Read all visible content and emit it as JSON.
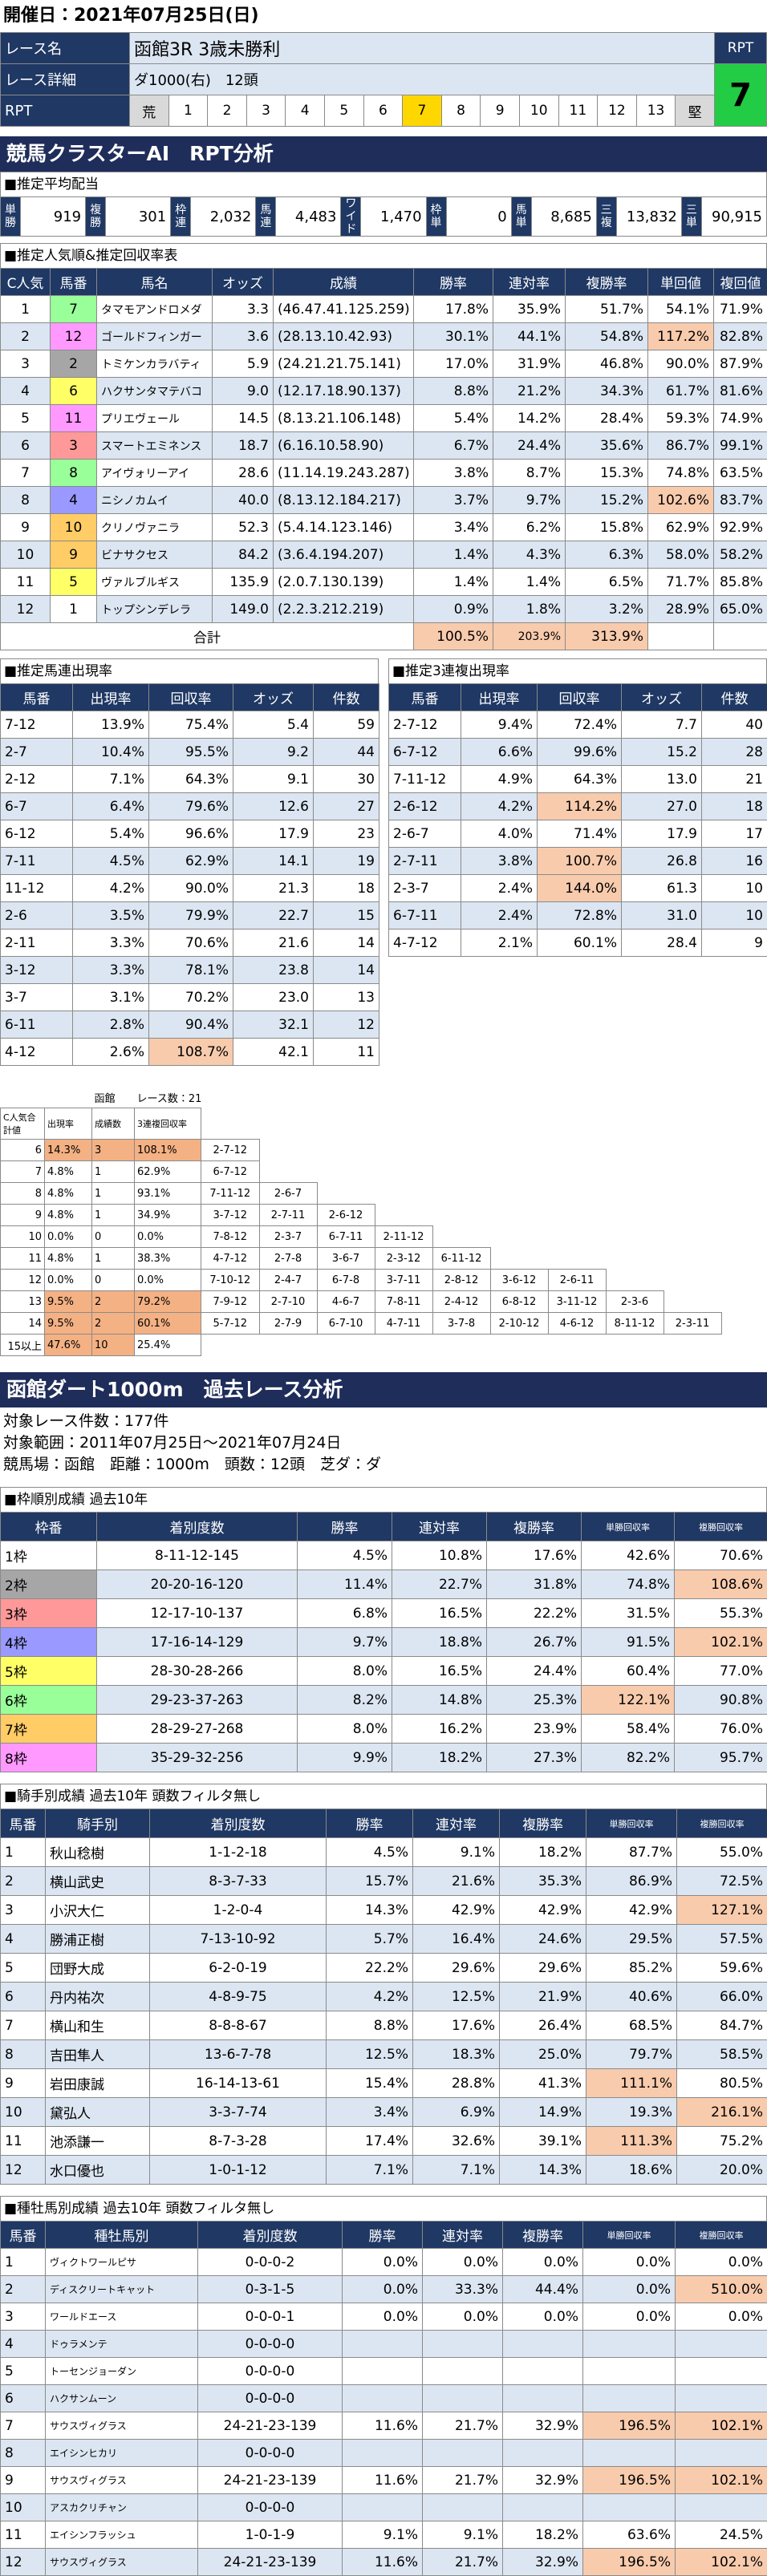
{
  "header": {
    "date": "開催日：2021年07月25日(日)",
    "race_name_label": "レース名",
    "race_name": "函館3R 3歳未勝利",
    "detail_label": "レース詳細",
    "detail": "ダ1000(右)　12頭",
    "rpt_label": "RPT",
    "rpt_scale": [
      "荒",
      "1",
      "2",
      "3",
      "4",
      "5",
      "6",
      "7",
      "8",
      "9",
      "10",
      "11",
      "12",
      "13",
      "堅"
    ],
    "rpt_box_label": "RPT",
    "rpt_value": "7"
  },
  "section1_title": "競馬クラスターAI　RPT分析",
  "payout": {
    "title": "■推定平均配当",
    "items": [
      {
        "label": "単勝",
        "value": "919"
      },
      {
        "label": "複勝",
        "value": "301"
      },
      {
        "label": "枠連",
        "value": "2,032"
      },
      {
        "label": "馬連",
        "value": "4,483"
      },
      {
        "label": "ワイド",
        "value": "1,470"
      },
      {
        "label": "枠単",
        "value": "0"
      },
      {
        "label": "馬単",
        "value": "8,685"
      },
      {
        "label": "三複",
        "value": "13,832"
      },
      {
        "label": "三単",
        "value": "90,915"
      }
    ]
  },
  "popularity": {
    "title": "■推定人気順&推定回収率表",
    "headers": [
      "C人気",
      "馬番",
      "馬名",
      "オッズ",
      "成績",
      "勝率",
      "連対率",
      "複勝率",
      "単回値",
      "複回値"
    ],
    "rows": [
      [
        "1",
        "7",
        "タマモアンドロメダ",
        "3.3",
        "(46.47.41.125.259)",
        "17.8%",
        "35.9%",
        "51.7%",
        "54.1%",
        "71.9%"
      ],
      [
        "2",
        "12",
        "ゴールドフィンガー",
        "3.6",
        "(28.13.10.42.93)",
        "30.1%",
        "44.1%",
        "54.8%",
        "117.2%",
        "82.8%"
      ],
      [
        "3",
        "2",
        "トミケンカラバティ",
        "5.9",
        "(24.21.21.75.141)",
        "17.0%",
        "31.9%",
        "46.8%",
        "90.0%",
        "87.9%"
      ],
      [
        "4",
        "6",
        "ハクサンタマテバコ",
        "9.0",
        "(12.17.18.90.137)",
        "8.8%",
        "21.2%",
        "34.3%",
        "61.7%",
        "81.6%"
      ],
      [
        "5",
        "11",
        "プリエヴェール",
        "14.5",
        "(8.13.21.106.148)",
        "5.4%",
        "14.2%",
        "28.4%",
        "59.3%",
        "74.9%"
      ],
      [
        "6",
        "3",
        "スマートエミネンス",
        "18.7",
        "(6.16.10.58.90)",
        "6.7%",
        "24.4%",
        "35.6%",
        "86.7%",
        "99.1%"
      ],
      [
        "7",
        "8",
        "アイヴォリーアイ",
        "28.6",
        "(11.14.19.243.287)",
        "3.8%",
        "8.7%",
        "15.3%",
        "74.8%",
        "63.5%"
      ],
      [
        "8",
        "4",
        "ニシノカムイ",
        "40.0",
        "(8.13.12.184.217)",
        "3.7%",
        "9.7%",
        "15.2%",
        "102.6%",
        "83.7%"
      ],
      [
        "9",
        "10",
        "クリノヴァニラ",
        "52.3",
        "(5.4.14.123.146)",
        "3.4%",
        "6.2%",
        "15.8%",
        "62.9%",
        "92.9%"
      ],
      [
        "10",
        "9",
        "ビナサクセス",
        "84.2",
        "(3.6.4.194.207)",
        "1.4%",
        "4.3%",
        "6.3%",
        "58.0%",
        "58.2%"
      ],
      [
        "11",
        "5",
        "ヴァルブルギス",
        "135.9",
        "(2.0.7.130.139)",
        "1.4%",
        "1.4%",
        "6.5%",
        "71.7%",
        "85.8%"
      ],
      [
        "12",
        "1",
        "トップシンデレラ",
        "149.0",
        "(2.2.3.212.219)",
        "0.9%",
        "1.8%",
        "3.2%",
        "28.9%",
        "65.0%"
      ]
    ],
    "total": {
      "label": "合計",
      "values": [
        "100.5%",
        "203.9%",
        "313.9%"
      ]
    }
  },
  "umaren": {
    "title": "■推定馬連出現率",
    "headers": [
      "馬番",
      "出現率",
      "回収率",
      "オッズ",
      "件数"
    ],
    "rows": [
      [
        "7-12",
        "13.9%",
        "75.4%",
        "5.4",
        "59"
      ],
      [
        "2-7",
        "10.4%",
        "95.5%",
        "9.2",
        "44"
      ],
      [
        "2-12",
        "7.1%",
        "64.3%",
        "9.1",
        "30"
      ],
      [
        "6-7",
        "6.4%",
        "79.6%",
        "12.6",
        "27"
      ],
      [
        "6-12",
        "5.4%",
        "96.6%",
        "17.9",
        "23"
      ],
      [
        "7-11",
        "4.5%",
        "62.9%",
        "14.1",
        "19"
      ],
      [
        "11-12",
        "4.2%",
        "90.0%",
        "21.3",
        "18"
      ],
      [
        "2-6",
        "3.5%",
        "79.9%",
        "22.7",
        "15"
      ],
      [
        "2-11",
        "3.3%",
        "70.6%",
        "21.6",
        "14"
      ],
      [
        "3-12",
        "3.3%",
        "78.1%",
        "23.8",
        "14"
      ],
      [
        "3-7",
        "3.1%",
        "70.2%",
        "23.0",
        "13"
      ],
      [
        "6-11",
        "2.8%",
        "90.4%",
        "32.1",
        "12"
      ],
      [
        "4-12",
        "2.6%",
        "108.7%",
        "42.1",
        "11"
      ]
    ]
  },
  "sanrenpuku": {
    "title": "■推定3連複出現率",
    "headers": [
      "馬番",
      "出現率",
      "回収率",
      "オッズ",
      "件数"
    ],
    "rows": [
      [
        "2-7-12",
        "9.4%",
        "72.4%",
        "7.7",
        "40"
      ],
      [
        "6-7-12",
        "6.6%",
        "99.6%",
        "15.2",
        "28"
      ],
      [
        "7-11-12",
        "4.9%",
        "64.3%",
        "13.0",
        "21"
      ],
      [
        "2-6-12",
        "4.2%",
        "114.2%",
        "27.0",
        "18"
      ],
      [
        "2-6-7",
        "4.0%",
        "71.4%",
        "17.9",
        "17"
      ],
      [
        "2-7-11",
        "3.8%",
        "100.7%",
        "26.8",
        "16"
      ],
      [
        "2-3-7",
        "2.4%",
        "144.0%",
        "61.3",
        "10"
      ],
      [
        "6-7-11",
        "2.4%",
        "72.8%",
        "31.0",
        "10"
      ],
      [
        "4-7-12",
        "2.1%",
        "60.1%",
        "28.4",
        "9"
      ]
    ]
  },
  "sum_table": {
    "venue": "函館",
    "race_count": "レース数：21",
    "headers": [
      "C人気合計値",
      "出現率",
      "成績数",
      "3連複回収率"
    ],
    "rows": [
      {
        "sum": "6",
        "rate": "14.3%",
        "count": "3",
        "recovery": "108.1%",
        "combos": [
          "2-7-12"
        ]
      },
      {
        "sum": "7",
        "rate": "4.8%",
        "count": "1",
        "recovery": "62.9%",
        "combos": [
          "6-7-12"
        ]
      },
      {
        "sum": "8",
        "rate": "4.8%",
        "count": "1",
        "recovery": "93.1%",
        "combos": [
          "7-11-12",
          "2-6-7"
        ]
      },
      {
        "sum": "9",
        "rate": "4.8%",
        "count": "1",
        "recovery": "34.9%",
        "combos": [
          "3-7-12",
          "2-7-11",
          "2-6-12"
        ]
      },
      {
        "sum": "10",
        "rate": "0.0%",
        "count": "0",
        "recovery": "0.0%",
        "combos": [
          "7-8-12",
          "2-3-7",
          "6-7-11",
          "2-11-12"
        ]
      },
      {
        "sum": "11",
        "rate": "4.8%",
        "count": "1",
        "recovery": "38.3%",
        "combos": [
          "4-7-12",
          "2-7-8",
          "3-6-7",
          "2-3-12",
          "6-11-12"
        ]
      },
      {
        "sum": "12",
        "rate": "0.0%",
        "count": "0",
        "recovery": "0.0%",
        "combos": [
          "7-10-12",
          "2-4-7",
          "6-7-8",
          "3-7-11",
          "2-8-12",
          "3-6-12",
          "2-6-11"
        ]
      },
      {
        "sum": "13",
        "rate": "9.5%",
        "count": "2",
        "recovery": "79.2%",
        "combos": [
          "7-9-12",
          "2-7-10",
          "4-6-7",
          "7-8-11",
          "2-4-12",
          "6-8-12",
          "3-11-12",
          "2-3-6"
        ]
      },
      {
        "sum": "14",
        "rate": "9.5%",
        "count": "2",
        "recovery": "60.1%",
        "combos": [
          "5-7-12",
          "2-7-9",
          "6-7-10",
          "4-7-11",
          "3-7-8",
          "2-10-12",
          "4-6-12",
          "8-11-12",
          "2-3-11"
        ]
      },
      {
        "sum": "15以上",
        "rate": "47.6%",
        "count": "10",
        "recovery": "25.4%",
        "combos": []
      }
    ]
  },
  "section2_title": "函館ダート1000m　過去レース分析",
  "analysis": {
    "count": "対象レース件数：177件",
    "range": "対象範囲：2011年07月25日～2021年07月24日",
    "conditions": "競馬場：函館　距離：1000m　頭数：12頭　芝ダ：ダ"
  },
  "frame": {
    "title": "■枠順別成績 過去10年",
    "headers": [
      "枠番",
      "着別度数",
      "勝率",
      "連対率",
      "複勝率",
      "単勝回収率",
      "複勝回収率"
    ],
    "rows": [
      [
        "1枠",
        "8-11-12-145",
        "4.5%",
        "10.8%",
        "17.6%",
        "42.6%",
        "70.6%"
      ],
      [
        "2枠",
        "20-20-16-120",
        "11.4%",
        "22.7%",
        "31.8%",
        "74.8%",
        "108.6%"
      ],
      [
        "3枠",
        "12-17-10-137",
        "6.8%",
        "16.5%",
        "22.2%",
        "31.5%",
        "55.3%"
      ],
      [
        "4枠",
        "17-16-14-129",
        "9.7%",
        "18.8%",
        "26.7%",
        "91.5%",
        "102.1%"
      ],
      [
        "5枠",
        "28-30-28-266",
        "8.0%",
        "16.5%",
        "24.4%",
        "60.4%",
        "77.0%"
      ],
      [
        "6枠",
        "29-23-37-263",
        "8.2%",
        "14.8%",
        "25.3%",
        "122.1%",
        "90.8%"
      ],
      [
        "7枠",
        "28-29-27-268",
        "8.0%",
        "16.2%",
        "23.9%",
        "58.4%",
        "76.0%"
      ],
      [
        "8枠",
        "35-29-32-256",
        "9.9%",
        "18.2%",
        "27.3%",
        "82.2%",
        "95.7%"
      ]
    ]
  },
  "jockey": {
    "title": "■騎手別成績 過去10年 頭数フィルタ無し",
    "headers": [
      "馬番",
      "騎手別",
      "着別度数",
      "勝率",
      "連対率",
      "複勝率",
      "単勝回収率",
      "複勝回収率"
    ],
    "rows": [
      [
        "1",
        "秋山稔樹",
        "1-1-2-18",
        "4.5%",
        "9.1%",
        "18.2%",
        "87.7%",
        "55.0%"
      ],
      [
        "2",
        "横山武史",
        "8-3-7-33",
        "15.7%",
        "21.6%",
        "35.3%",
        "86.9%",
        "72.5%"
      ],
      [
        "3",
        "小沢大仁",
        "1-2-0-4",
        "14.3%",
        "42.9%",
        "42.9%",
        "42.9%",
        "127.1%"
      ],
      [
        "4",
        "勝浦正樹",
        "7-13-10-92",
        "5.7%",
        "16.4%",
        "24.6%",
        "29.5%",
        "57.5%"
      ],
      [
        "5",
        "団野大成",
        "6-2-0-19",
        "22.2%",
        "29.6%",
        "29.6%",
        "85.2%",
        "59.6%"
      ],
      [
        "6",
        "丹内祐次",
        "4-8-9-75",
        "4.2%",
        "12.5%",
        "21.9%",
        "40.6%",
        "66.0%"
      ],
      [
        "7",
        "横山和生",
        "8-8-8-67",
        "8.8%",
        "17.6%",
        "26.4%",
        "68.5%",
        "84.7%"
      ],
      [
        "8",
        "吉田隼人",
        "13-6-7-78",
        "12.5%",
        "18.3%",
        "25.0%",
        "79.7%",
        "58.5%"
      ],
      [
        "9",
        "岩田康誠",
        "16-14-13-61",
        "15.4%",
        "28.8%",
        "41.3%",
        "111.1%",
        "80.5%"
      ],
      [
        "10",
        "黛弘人",
        "3-3-7-74",
        "3.4%",
        "6.9%",
        "14.9%",
        "19.3%",
        "216.1%"
      ],
      [
        "11",
        "池添謙一",
        "8-7-3-28",
        "17.4%",
        "32.6%",
        "39.1%",
        "111.3%",
        "75.2%"
      ],
      [
        "12",
        "水口優也",
        "1-0-1-12",
        "7.1%",
        "7.1%",
        "14.3%",
        "18.6%",
        "20.0%"
      ]
    ]
  },
  "sire": {
    "title": "■種牡馬別成績 過去10年 頭数フィルタ無し",
    "headers": [
      "馬番",
      "種牡馬別",
      "着別度数",
      "勝率",
      "連対率",
      "複勝率",
      "単勝回収率",
      "複勝回収率"
    ],
    "rows": [
      [
        "1",
        "ヴィクトワールピサ",
        "0-0-0-2",
        "0.0%",
        "0.0%",
        "0.0%",
        "0.0%",
        "0.0%"
      ],
      [
        "2",
        "ディスクリートキャット",
        "0-3-1-5",
        "0.0%",
        "33.3%",
        "44.4%",
        "0.0%",
        "510.0%"
      ],
      [
        "3",
        "ワールドエース",
        "0-0-0-1",
        "0.0%",
        "0.0%",
        "0.0%",
        "0.0%",
        "0.0%"
      ],
      [
        "4",
        "ドゥラメンテ",
        "0-0-0-0",
        null,
        null,
        null,
        null,
        null
      ],
      [
        "5",
        "トーセンジョーダン",
        "0-0-0-0",
        null,
        null,
        null,
        null,
        null
      ],
      [
        "6",
        "ハクサンムーン",
        "0-0-0-0",
        null,
        null,
        null,
        null,
        null
      ],
      [
        "7",
        "サウスヴィグラス",
        "24-21-23-139",
        "11.6%",
        "21.7%",
        "32.9%",
        "196.5%",
        "102.1%"
      ],
      [
        "8",
        "エイシンヒカリ",
        "0-0-0-0",
        null,
        null,
        null,
        null,
        null
      ],
      [
        "9",
        "サウスヴィグラス",
        "24-21-23-139",
        "11.6%",
        "21.7%",
        "32.9%",
        "196.5%",
        "102.1%"
      ],
      [
        "10",
        "アスカクリチャン",
        "0-0-0-0",
        null,
        null,
        null,
        null,
        null
      ],
      [
        "11",
        "エイシンフラッシュ",
        "1-0-1-9",
        "9.1%",
        "9.1%",
        "18.2%",
        "63.6%",
        "24.5%"
      ],
      [
        "12",
        "サウスヴィグラス",
        "24-21-23-139",
        "11.6%",
        "21.7%",
        "32.9%",
        "196.5%",
        "102.1%"
      ]
    ]
  }
}
